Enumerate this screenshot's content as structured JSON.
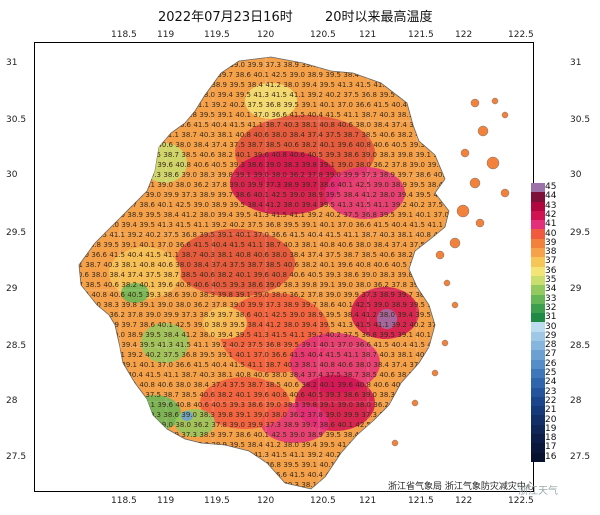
{
  "title": {
    "date_text": "2022年07月23日16时",
    "subtitle": "20时以来最高温度"
  },
  "axes": {
    "lon_ticks": [
      "118.5",
      "119",
      "119.5",
      "120",
      "120.5",
      "121",
      "121.5",
      "122",
      "122.5"
    ],
    "lat_ticks": [
      "31",
      "30.5",
      "30",
      "29.5",
      "29",
      "28.5",
      "28",
      "27.5"
    ]
  },
  "footer": "浙江省气象局  浙江气象防灾减灾中心",
  "watermark": "浙江天气",
  "legend": {
    "levels": [
      45,
      44,
      43,
      42,
      41,
      40,
      39,
      38,
      37,
      36,
      35,
      34,
      33,
      32,
      31,
      30,
      29,
      28,
      27,
      26,
      25,
      24,
      23,
      22,
      21,
      20,
      19,
      18,
      17,
      16
    ],
    "colors": [
      "#9c72a8",
      "#7d1038",
      "#b0083e",
      "#d11252",
      "#e4307a",
      "#f25a3f",
      "#f2813c",
      "#f5a24a",
      "#f7c659",
      "#f2e477",
      "#c9de6f",
      "#93c95f",
      "#66b657",
      "#3d9e4d",
      "#1f8a46",
      "#bcdcef",
      "#9ec8e5",
      "#86b6dd",
      "#6aa1d2",
      "#548dc7",
      "#3f78ba",
      "#2f65ad",
      "#24559c",
      "#1c468b",
      "#163a79",
      "#122f67",
      "#0f2656",
      "#0c1e48",
      "#0a173a",
      "#08122e"
    ]
  },
  "map": {
    "sample_values": [
      "38.9",
      "39.6",
      "40.4",
      "41.2",
      "39.1",
      "38.4",
      "37.5",
      "39.7",
      "40.8",
      "41.5",
      "38.0",
      "39.0",
      "37.4",
      "36.8",
      "38.6",
      "40.6",
      "41.1",
      "39.4",
      "38.0",
      "37.5",
      "39.5",
      "40.1",
      "40.5",
      "38.7",
      "39.5",
      "36.2",
      "38.7",
      "39.1",
      "42.5",
      "39.3",
      "40.3",
      "41.3",
      "37.8",
      "38.5",
      "40.1",
      "39.0",
      "38.6",
      "38.1",
      "41.5",
      "39.0",
      "40.6",
      "37.0",
      "38.9",
      "39.0",
      "40.8",
      "41.1",
      "39.9",
      "38.2",
      "36.6",
      "39.5",
      "38.3",
      "40.6",
      "39.2",
      "37.3",
      "40.1",
      "41.5",
      "38.4",
      "39.8",
      "38.0",
      "40.2"
    ]
  }
}
